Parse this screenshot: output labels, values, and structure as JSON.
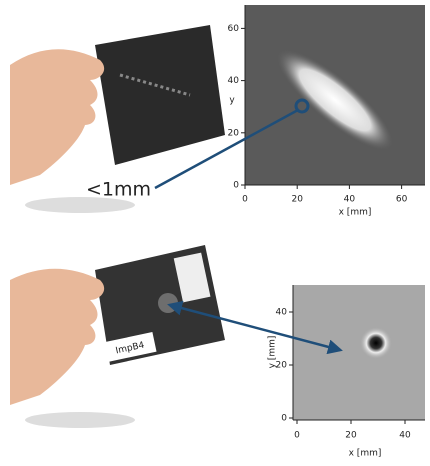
{
  "top": {
    "annotation": "<1mm",
    "x_ticks": [
      0,
      20,
      40,
      60
    ],
    "y_ticks": [
      0,
      20,
      40,
      60
    ],
    "x_label": "x [mm]",
    "y_label": "y"
  },
  "bottom": {
    "sample_label": "ImpB4",
    "x_ticks": [
      0,
      20,
      40
    ],
    "y_ticks": [
      0,
      20,
      40
    ],
    "x_label": "x [mm]",
    "y_label": "y [mm]"
  }
}
